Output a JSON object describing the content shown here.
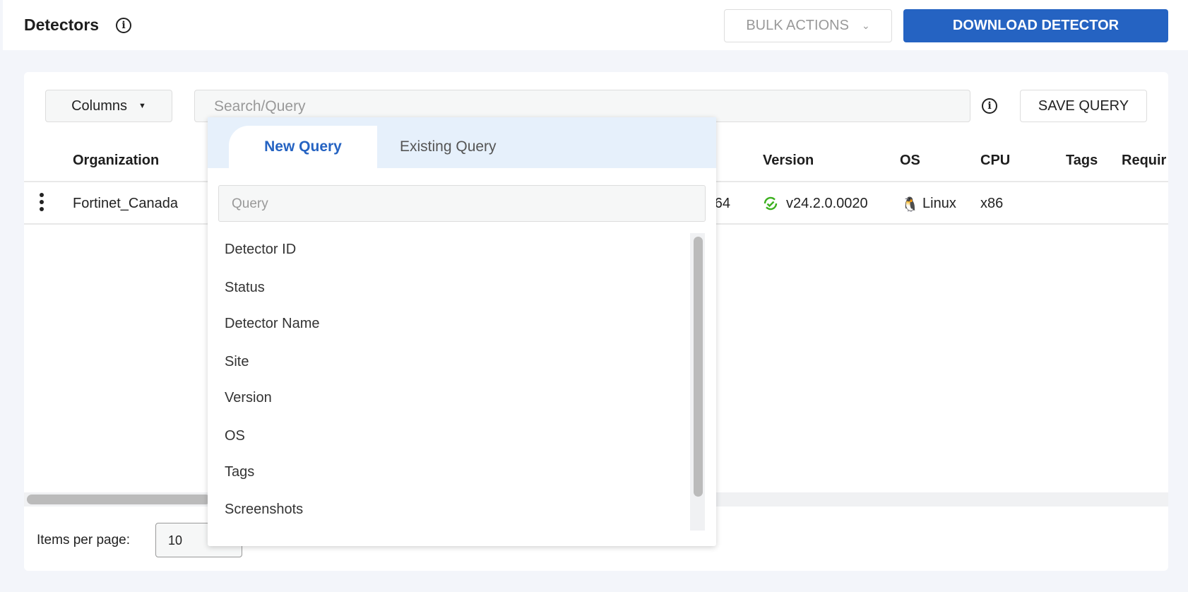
{
  "header": {
    "title": "Detectors",
    "bulk_actions": "BULK ACTIONS",
    "download": "DOWNLOAD DETECTOR"
  },
  "toolbar": {
    "columns": "Columns",
    "search_placeholder": "Search/Query",
    "save_query": "SAVE QUERY"
  },
  "table": {
    "headers": {
      "organization": "Organization",
      "version": "Version",
      "os": "OS",
      "cpu": "CPU",
      "tags": "Tags",
      "required": "Requir"
    },
    "rows": [
      {
        "organization": "Fortinet_Canada",
        "partial": "64",
        "version": "v24.2.0.0020",
        "os": "Linux",
        "cpu": "x86"
      }
    ]
  },
  "dropdown": {
    "tabs": [
      "New Query",
      "Existing Query"
    ],
    "active_tab": "New Query",
    "query_placeholder": "Query",
    "items": [
      "Detector ID",
      "Status",
      "Detector Name",
      "Site",
      "Version",
      "OS",
      "Tags",
      "Screenshots"
    ]
  },
  "pagination": {
    "label": "Items per page:",
    "value": "10"
  },
  "colors": {
    "accent": "#2563c2",
    "status_ok": "#3cb01f"
  }
}
